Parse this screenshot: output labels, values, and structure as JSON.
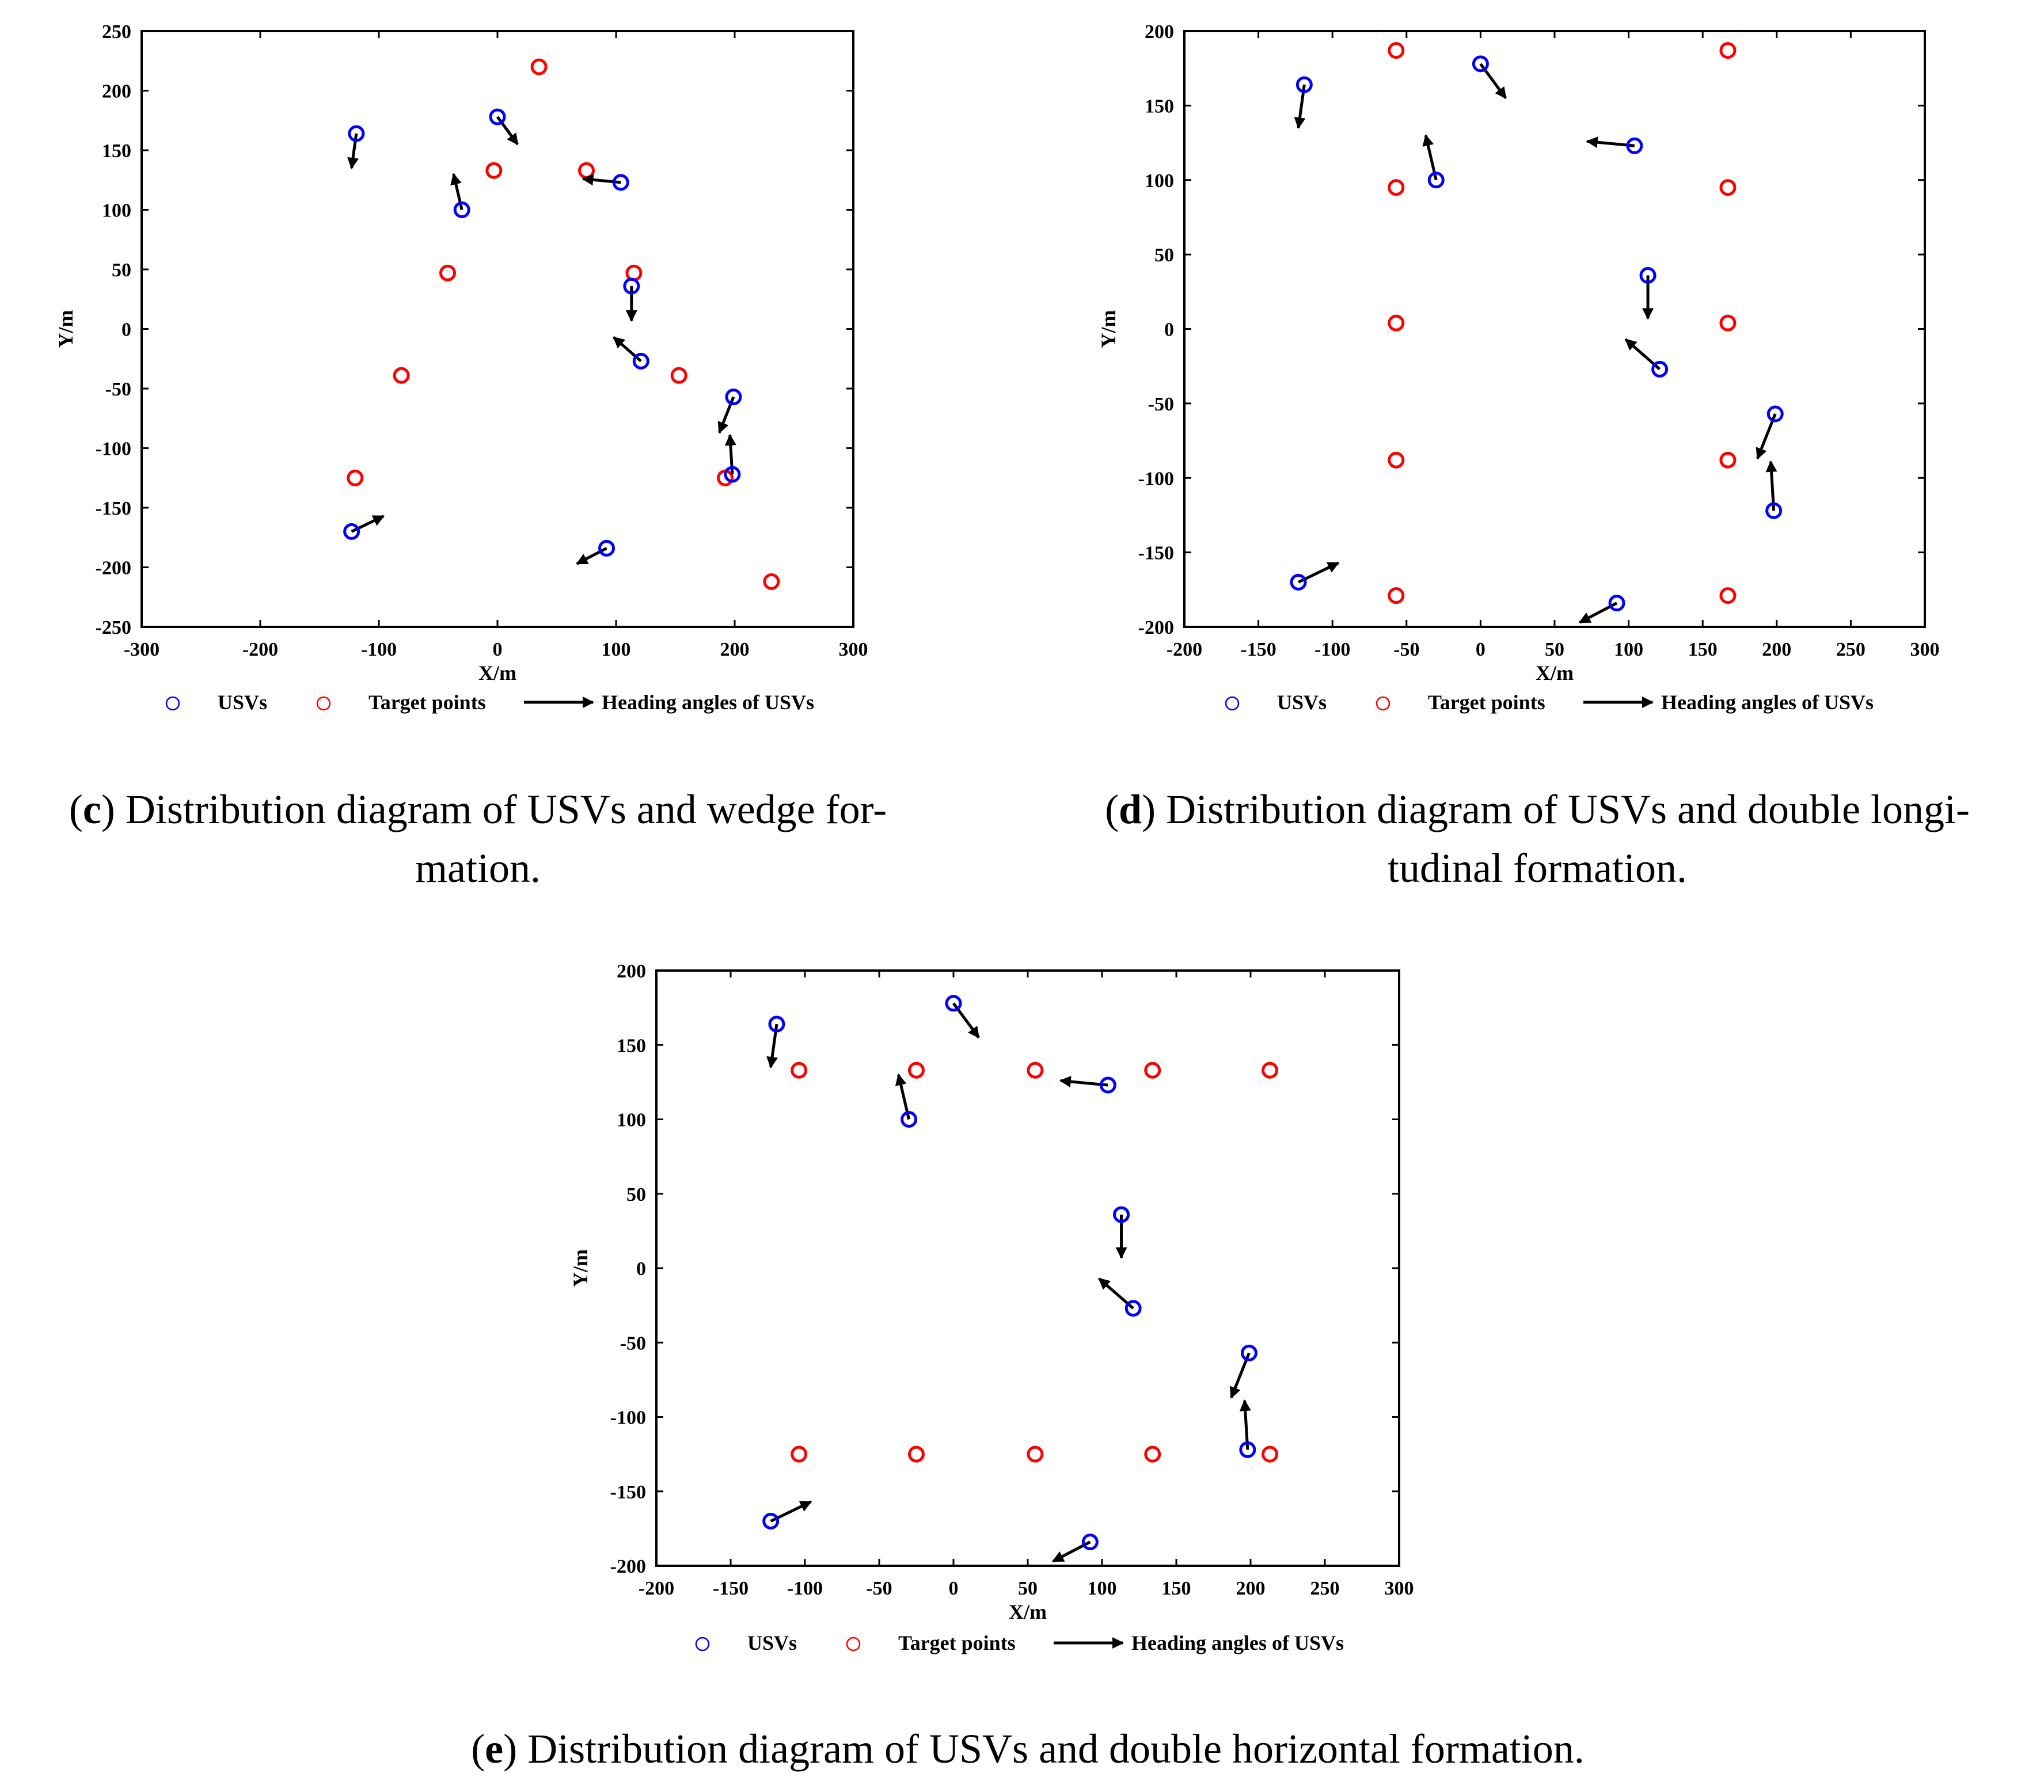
{
  "legend": {
    "usvs": "USVs",
    "targets": "Target points",
    "heading": "Heading angles of USVs"
  },
  "colors": {
    "usv": "#0000ff",
    "target": "#ff0000",
    "arrow": "#000000"
  },
  "usvs": [
    {
      "x": -123,
      "y": -170,
      "dx": 27,
      "dy": 13
    },
    {
      "x": -119,
      "y": 164,
      "dx": -4,
      "dy": -29
    },
    {
      "x": -30,
      "y": 100,
      "dx": -7,
      "dy": 30
    },
    {
      "x": 0,
      "y": 178,
      "dx": 17,
      "dy": -23
    },
    {
      "x": 92,
      "y": -184,
      "dx": -25,
      "dy": -13
    },
    {
      "x": 104,
      "y": 123,
      "dx": -32,
      "dy": 3
    },
    {
      "x": 113,
      "y": 36,
      "dx": 0,
      "dy": -29
    },
    {
      "x": 121,
      "y": -27,
      "dx": -23,
      "dy": 20
    },
    {
      "x": 199,
      "y": -57,
      "dx": -12,
      "dy": -30
    },
    {
      "x": 198,
      "y": -122,
      "dx": -2,
      "dy": 33
    }
  ],
  "chart_data": [
    {
      "id": "c",
      "type": "scatter",
      "xlabel": "X/m",
      "ylabel": "Y/m",
      "xlim": [
        -300,
        300
      ],
      "ylim": [
        -250,
        250
      ],
      "xticks": [
        -300,
        -200,
        -100,
        0,
        100,
        200,
        300
      ],
      "yticks": [
        -250,
        -200,
        -150,
        -100,
        -50,
        0,
        50,
        100,
        150,
        200,
        250
      ],
      "target_points": [
        [
          35,
          220
        ],
        [
          -3,
          133
        ],
        [
          75,
          133
        ],
        [
          -42,
          47
        ],
        [
          115,
          47
        ],
        [
          -81,
          -39
        ],
        [
          153,
          -39
        ],
        [
          -120,
          -125
        ],
        [
          192,
          -125
        ],
        [
          231,
          -212
        ]
      ],
      "caption": {
        "label": "(c)",
        "lines": [
          "Distribution diagram of USVs and wedge for-",
          "mation."
        ]
      }
    },
    {
      "id": "d",
      "type": "scatter",
      "xlabel": "X/m",
      "ylabel": "Y/m",
      "xlim": [
        -200,
        300
      ],
      "ylim": [
        -200,
        200
      ],
      "xticks": [
        -200,
        -150,
        -100,
        -50,
        0,
        50,
        100,
        150,
        200,
        250,
        300
      ],
      "yticks": [
        -200,
        -150,
        -100,
        -50,
        0,
        50,
        100,
        150,
        200
      ],
      "target_points": [
        [
          -57,
          187
        ],
        [
          167,
          187
        ],
        [
          -57,
          95
        ],
        [
          167,
          95
        ],
        [
          -57,
          4
        ],
        [
          167,
          4
        ],
        [
          -57,
          -88
        ],
        [
          167,
          -88
        ],
        [
          -57,
          -179
        ],
        [
          167,
          -179
        ]
      ],
      "caption": {
        "label": "(d)",
        "lines": [
          "Distribution diagram of USVs and double longi-",
          "tudinal formation."
        ]
      }
    },
    {
      "id": "e",
      "type": "scatter",
      "xlabel": "X/m",
      "ylabel": "Y/m",
      "xlim": [
        -200,
        300
      ],
      "ylim": [
        -200,
        200
      ],
      "xticks": [
        -200,
        -150,
        -100,
        -50,
        0,
        50,
        100,
        150,
        200,
        250,
        300
      ],
      "yticks": [
        -200,
        -150,
        -100,
        -50,
        0,
        50,
        100,
        150,
        200
      ],
      "target_points": [
        [
          -104,
          133
        ],
        [
          -25,
          133
        ],
        [
          55,
          133
        ],
        [
          134,
          133
        ],
        [
          213,
          133
        ],
        [
          -104,
          -125
        ],
        [
          -25,
          -125
        ],
        [
          55,
          -125
        ],
        [
          134,
          -125
        ],
        [
          213,
          -125
        ]
      ],
      "caption": {
        "label": "(e)",
        "lines": [
          "Distribution diagram of USVs and double horizontal formation."
        ]
      }
    }
  ]
}
